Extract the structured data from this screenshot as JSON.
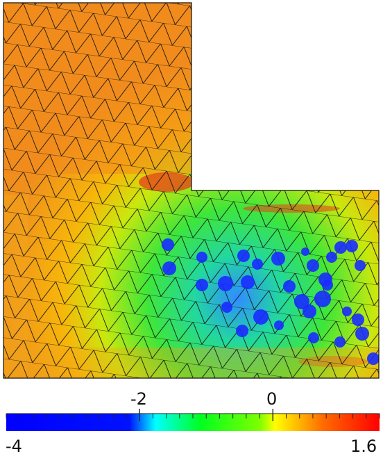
{
  "figure": {
    "description_visible": false,
    "colors": {
      "mesh_line": "#111111",
      "background": "#ffffff"
    }
  },
  "colorbar": {
    "min_label": "-4",
    "max_label": "1.6",
    "tick_labels": [
      "-2",
      "0"
    ],
    "min_value": -4,
    "max_value": 1.6,
    "tick_values": [
      -2,
      0
    ],
    "colormap": [
      "#0000ff",
      "#00ffff",
      "#00ff00",
      "#ffff00",
      "#ff0000"
    ]
  }
}
